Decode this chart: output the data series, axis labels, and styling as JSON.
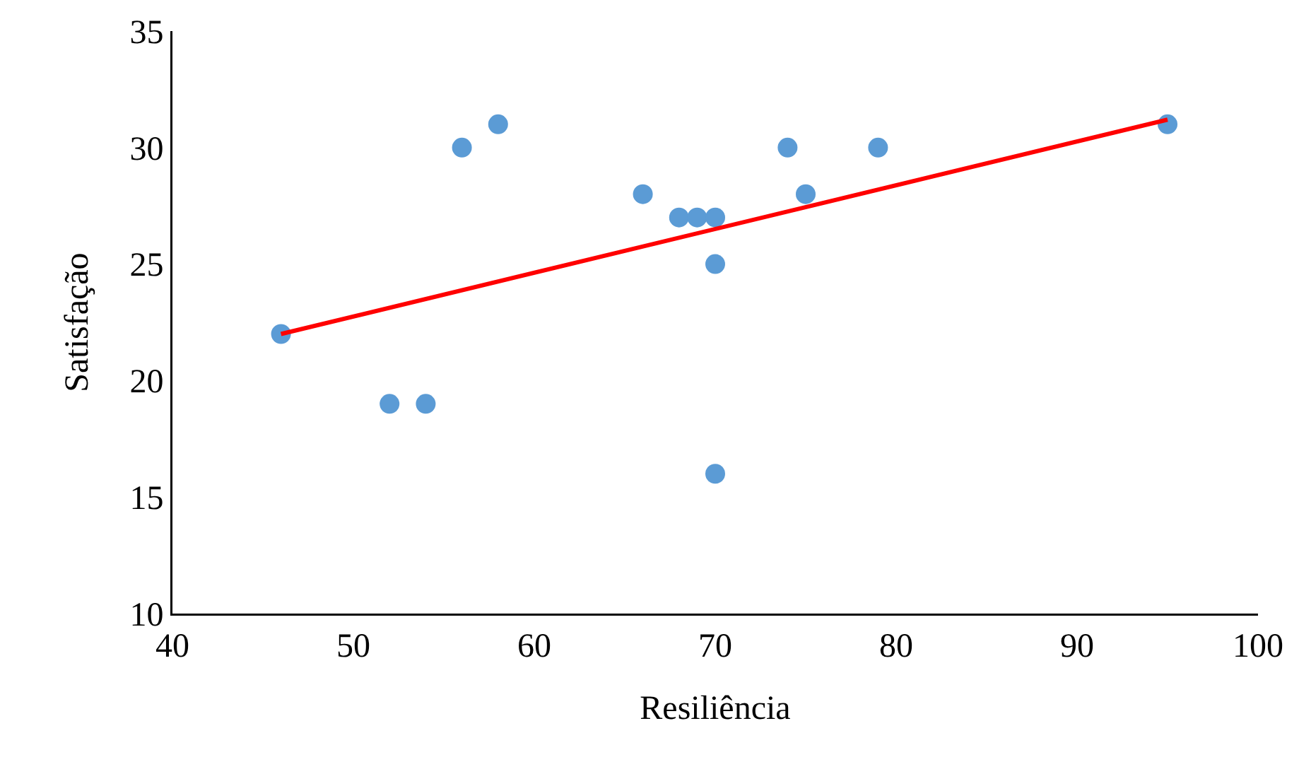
{
  "chart_data": {
    "type": "scatter",
    "xlabel": "Resiliência",
    "ylabel": "Satisfação",
    "xlim": [
      40,
      100
    ],
    "xticks": [
      40,
      50,
      60,
      70,
      80,
      90,
      100
    ],
    "ylim": [
      10,
      35
    ],
    "yticks": [
      10,
      15,
      20,
      25,
      30,
      35
    ],
    "grid": false,
    "series": [
      {
        "color": "#5b9bd5",
        "marker": "circle",
        "x": [
          46,
          52,
          54,
          56,
          58,
          66,
          68,
          69,
          70,
          70,
          70,
          74,
          75,
          79,
          95
        ],
        "values": [
          22,
          19,
          19,
          30,
          31,
          28,
          27,
          27,
          27,
          25,
          16,
          30,
          28,
          30,
          31
        ]
      },
      {
        "type": "line",
        "color": "#ff0000",
        "line_style": "solid",
        "x": [
          46,
          95
        ],
        "values": [
          22.0,
          31.2
        ]
      }
    ]
  }
}
